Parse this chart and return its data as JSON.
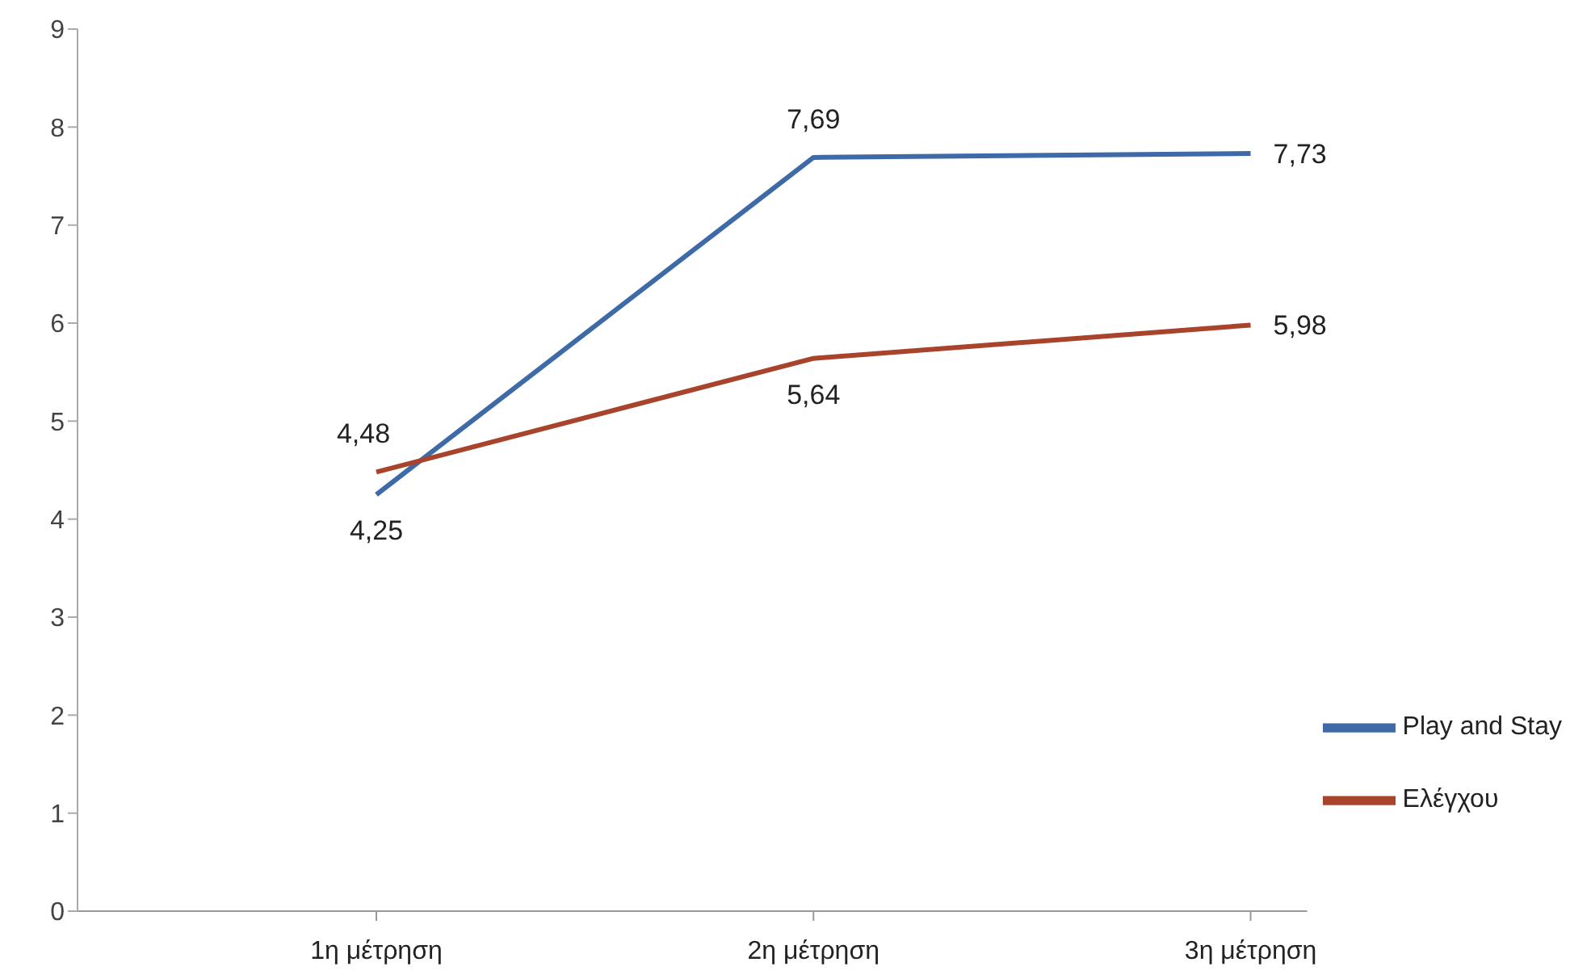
{
  "chart_data": {
    "type": "line",
    "categories": [
      "1η μέτρηση",
      "2η μέτρηση",
      "3η μέτρηση"
    ],
    "series": [
      {
        "name": "Play and Stay",
        "color": "#3e6aa8",
        "values": [
          4.25,
          7.69,
          7.73
        ],
        "value_labels": [
          "4,25",
          "7,69",
          "7,73"
        ]
      },
      {
        "name": "Ελέγχου",
        "color": "#a8432c",
        "values": [
          4.48,
          5.64,
          5.98
        ],
        "value_labels": [
          "4,48",
          "5,64",
          "5,98"
        ]
      }
    ],
    "ylim": [
      0,
      9
    ],
    "yticks": [
      0,
      1,
      2,
      3,
      4,
      5,
      6,
      7,
      8,
      9
    ],
    "grid": false,
    "legend": "right",
    "marker": "none",
    "line_style": "solid"
  }
}
